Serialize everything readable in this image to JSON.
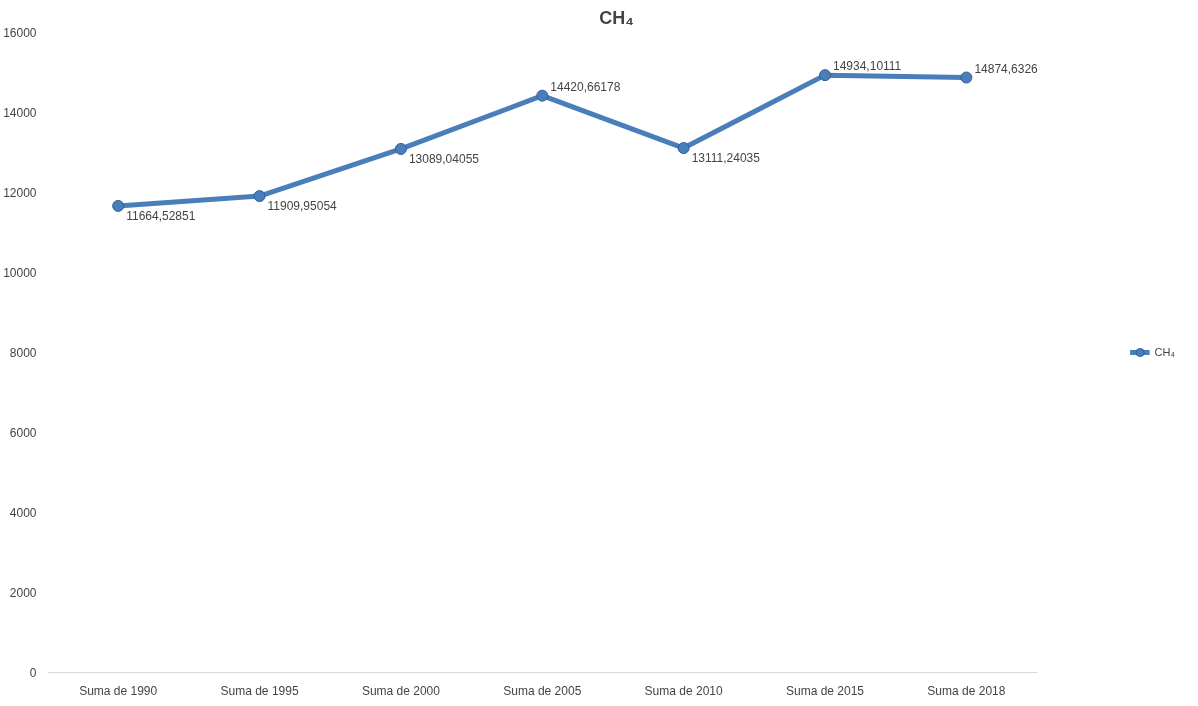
{
  "chart_data": {
    "type": "line",
    "title": "CH₄",
    "categories": [
      "Suma de 1990",
      "Suma de 1995",
      "Suma de 2000",
      "Suma de 2005",
      "Suma de 2010",
      "Suma de 2015",
      "Suma de 2018"
    ],
    "series": [
      {
        "name": "CH₄",
        "color": "#4a7ebb",
        "values": [
          11664.52851,
          11909.95054,
          13089.04055,
          14420.66178,
          13111.24035,
          14934.10111,
          14874.6326
        ],
        "value_labels": [
          "11664,52851",
          "11909,95054",
          "13089,04055",
          "14420,66178",
          "13111,24035",
          "14934,10111",
          "14874,6326"
        ]
      }
    ],
    "ylim": [
      0,
      16000
    ],
    "yticks": [
      0,
      2000,
      4000,
      6000,
      8000,
      10000,
      12000,
      14000,
      16000
    ],
    "grid": false,
    "legend": "right",
    "marker": "circle",
    "line_style": "solid"
  }
}
